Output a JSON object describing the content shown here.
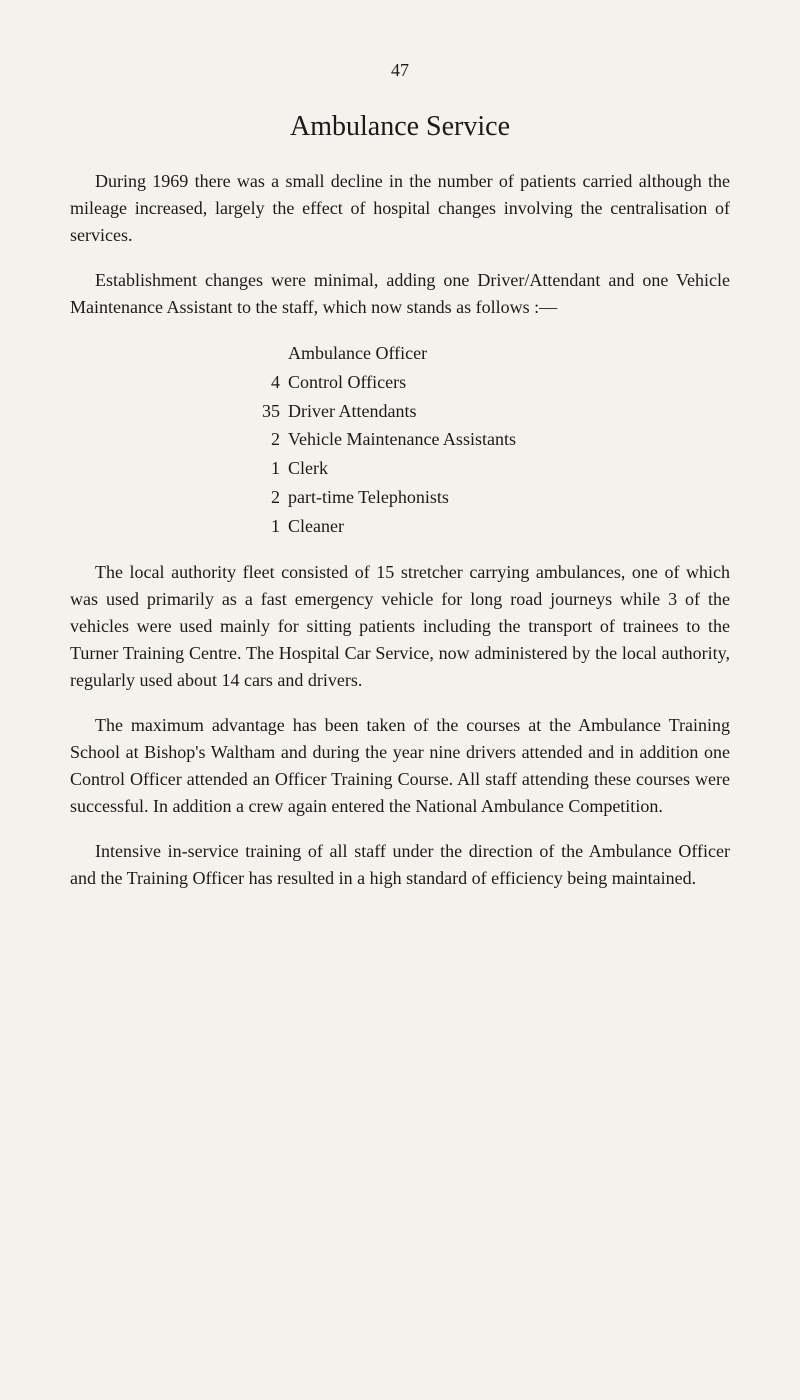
{
  "page_number": "47",
  "title": "Ambulance Service",
  "paragraphs": {
    "p1": "During 1969 there was a small decline in the number of patients carried although the mileage increased, largely the effect of hospital changes involving the centralisation of services.",
    "p2": "Establishment changes were minimal, adding one Driver/Attendant and one Vehicle Maintenance Assistant to the staff, which now stands as follows :—",
    "p3": "The local authority fleet consisted of 15 stretcher carrying ambulances, one of which was used primarily as a fast emergency vehicle for long road journeys while 3 of the vehicles were used mainly for sitting patients including the transport of trainees to the Turner Training Centre. The Hospital Car Service, now administered by the local authority, regularly used about 14 cars and drivers.",
    "p4": "The maximum advantage has been taken of the courses at the Ambulance Training School at Bishop's Waltham and during the year nine drivers attended and in addition one Control Officer attended an Officer Training Course. All staff attending these courses were successful. In addition a crew again entered the National Ambulance Competition.",
    "p5": "Intensive in-service training of all staff under the direction of the Ambulance Officer and the Training Officer has resulted in a high standard of efficiency being maintained."
  },
  "staff_list": [
    {
      "number": "",
      "label": "Ambulance Officer"
    },
    {
      "number": "4",
      "label": "Control Officers"
    },
    {
      "number": "35",
      "label": "Driver Attendants"
    },
    {
      "number": "2",
      "label": "Vehicle Maintenance Assistants"
    },
    {
      "number": "1",
      "label": "Clerk"
    },
    {
      "number": "2",
      "label": "part-time Telephonists"
    },
    {
      "number": "1",
      "label": "Cleaner"
    }
  ],
  "colors": {
    "background": "#f5f2ed",
    "text": "#1a1a1a"
  },
  "typography": {
    "body_font_size": 18,
    "title_font_size": 28,
    "font_family": "Times New Roman"
  }
}
